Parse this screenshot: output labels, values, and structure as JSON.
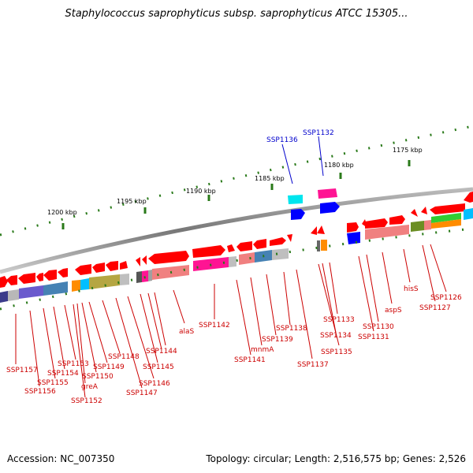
{
  "title": "Staphylococcus saprophyticus subsp. saprophyticus ATCC 15305...",
  "accession": "Accession: NC_007350",
  "summary": "Topology: circular; Length: 2,516,575 bp; Genes: 2,526",
  "colors": {
    "forward": "#ff0000",
    "backbone": "#888888",
    "scale": "#2a7a1a",
    "leader_red": "#cc0000",
    "leader_blue": "#0000cc"
  },
  "scale_labels": [
    "1200 kbp",
    "1195 kbp",
    "1190 kbp",
    "1185 kbp",
    "1180 kbp",
    "1175 kbp"
  ],
  "gene_labels": [
    {
      "text": "SSP1136",
      "color": "blue"
    },
    {
      "text": "SSP1132",
      "color": "blue"
    },
    {
      "text": "SSP1157",
      "color": "red"
    },
    {
      "text": "SSP1156",
      "color": "red"
    },
    {
      "text": "SSP1155",
      "color": "red"
    },
    {
      "text": "SSP1154",
      "color": "red"
    },
    {
      "text": "SSP1153",
      "color": "red"
    },
    {
      "text": "SSP1152",
      "color": "red"
    },
    {
      "text": "greA",
      "color": "red"
    },
    {
      "text": "SSP1150",
      "color": "red"
    },
    {
      "text": "SSP1149",
      "color": "red"
    },
    {
      "text": "SSP1148",
      "color": "red"
    },
    {
      "text": "SSP1147",
      "color": "red"
    },
    {
      "text": "SSP1146",
      "color": "red"
    },
    {
      "text": "SSP1145",
      "color": "red"
    },
    {
      "text": "SSP1144",
      "color": "red"
    },
    {
      "text": "alaS",
      "color": "red"
    },
    {
      "text": "SSP1142",
      "color": "red"
    },
    {
      "text": "SSP1141",
      "color": "red"
    },
    {
      "text": "mnmA",
      "color": "red"
    },
    {
      "text": "SSP1139",
      "color": "red"
    },
    {
      "text": "SSP1138",
      "color": "red"
    },
    {
      "text": "SSP1137",
      "color": "red"
    },
    {
      "text": "SSP1135",
      "color": "red"
    },
    {
      "text": "SSP1134",
      "color": "red"
    },
    {
      "text": "SSP1133",
      "color": "red"
    },
    {
      "text": "SSP1131",
      "color": "red"
    },
    {
      "text": "SSP1130",
      "color": "red"
    },
    {
      "text": "aspS",
      "color": "red"
    },
    {
      "text": "hisS",
      "color": "red"
    },
    {
      "text": "SSP1127",
      "color": "red"
    },
    {
      "text": "SSP1126",
      "color": "red"
    }
  ]
}
